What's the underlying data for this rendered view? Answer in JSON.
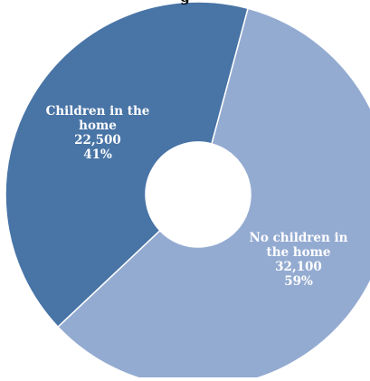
{
  "title_fragment": "g",
  "chart_data": {
    "type": "pie",
    "style": "donut",
    "title": "",
    "slices": [
      {
        "label_lines": [
          "Children in the",
          "home"
        ],
        "count": "22,500",
        "percent": "41%",
        "value": 22500,
        "color": "#4874a6"
      },
      {
        "label_lines": [
          "No children in",
          "the home"
        ],
        "count": "32,100",
        "percent": "59%",
        "value": 32100,
        "color": "#94abd1"
      }
    ],
    "colors": {
      "separator": "#ffffff"
    }
  }
}
